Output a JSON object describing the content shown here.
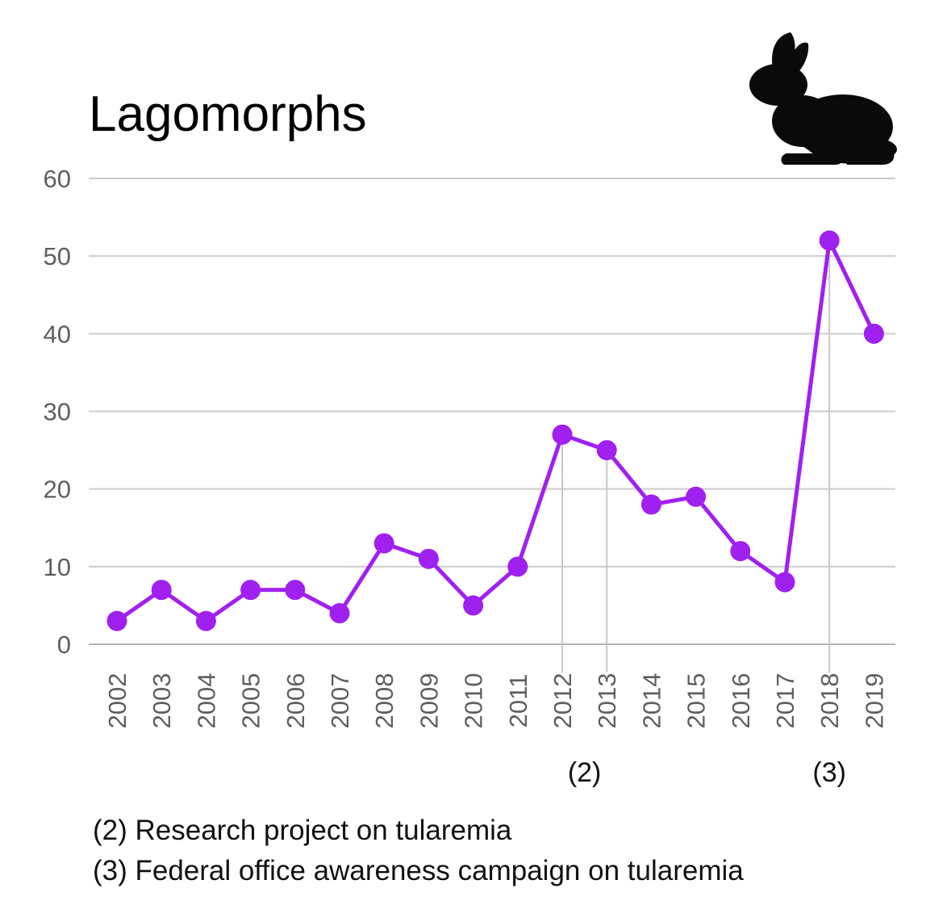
{
  "chart_data": {
    "type": "line",
    "title": "Lagomorphs",
    "xlabel": "",
    "ylabel": "",
    "ylim": [
      0,
      60
    ],
    "yticks": [
      "0",
      "10",
      "20",
      "30",
      "40",
      "50",
      "60"
    ],
    "grid": true,
    "categories": [
      "2002",
      "2003",
      "2004",
      "2005",
      "2006",
      "2007",
      "2008",
      "2009",
      "2010",
      "2011",
      "2012",
      "2013",
      "2014",
      "2015",
      "2016",
      "2017",
      "2018",
      "2019"
    ],
    "series": [
      {
        "values": [
          3,
          7,
          3,
          7,
          7,
          4,
          13,
          11,
          5,
          10,
          27,
          25,
          18,
          19,
          12,
          8,
          52,
          40
        ]
      }
    ],
    "annotations": [
      {
        "label": "(2)",
        "categories": [
          "2012",
          "2013"
        ]
      },
      {
        "label": "(3)",
        "categories": [
          "2018"
        ]
      }
    ],
    "footnotes": [
      "(2) Research project on tularemia",
      "(3) Federal office awareness campaign on tularemia"
    ],
    "colors": {
      "line": "#a020f0",
      "grid": "#cccccc",
      "ticks": "#5f5f5f"
    }
  },
  "icon": "rabbit-silhouette-icon"
}
